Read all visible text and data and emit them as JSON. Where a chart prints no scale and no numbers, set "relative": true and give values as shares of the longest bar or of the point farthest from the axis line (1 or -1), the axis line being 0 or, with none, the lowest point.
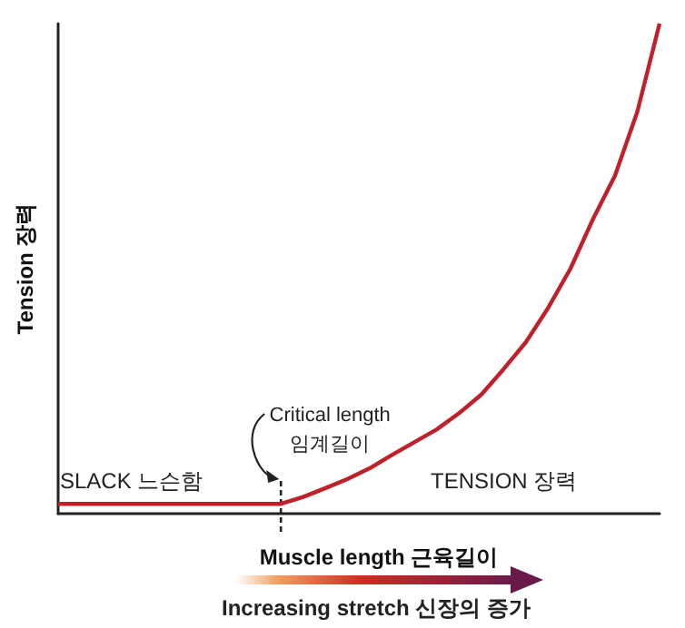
{
  "chart_data": {
    "type": "line",
    "relative": true,
    "marker": "none",
    "xlabel": "Muscle length 근육길이",
    "ylabel": "Tension 장력",
    "categories": [
      null,
      null,
      null,
      null,
      null,
      null,
      null,
      null,
      null,
      null,
      null,
      null,
      null,
      null,
      null,
      null,
      null,
      null,
      null,
      null,
      null,
      null,
      null,
      null,
      null,
      null,
      null,
      null
    ],
    "series": [
      {
        "color": "#c0202a",
        "values": [
          0.02,
          0.02,
          0.02,
          0.02,
          0.02,
          0.02,
          0.02,
          0.02,
          0.02,
          0.02,
          0.02,
          0.034,
          0.052,
          0.071,
          0.093,
          0.12,
          0.146,
          0.172,
          0.205,
          0.243,
          0.295,
          0.35,
          0.42,
          0.5,
          0.6,
          0.69,
          0.82,
          1
        ]
      }
    ],
    "annotations": [
      "SLACK 느슨함",
      "TENSION 장력",
      "Increasing stretch 신장의 증가",
      "Critical length\n임계길이"
    ]
  }
}
